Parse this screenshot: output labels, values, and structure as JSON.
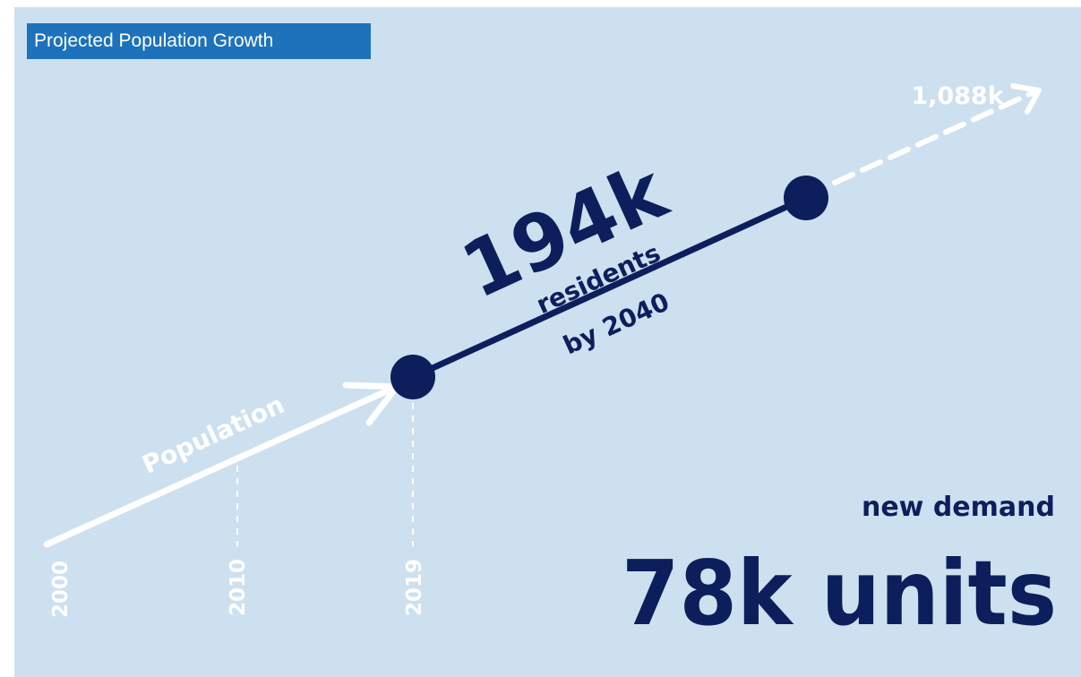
{
  "title": "Projected Population Growth",
  "segment_label": "Population",
  "years": [
    "2000",
    "2010",
    "2019"
  ],
  "projection": {
    "value": "194k",
    "unit": "residents",
    "period": "by 2040"
  },
  "endpoint_label": "1,088k",
  "demand": {
    "label": "new demand",
    "value": "78k units"
  },
  "colors": {
    "background": "#cde0f0",
    "badge": "#1d72bb",
    "navy": "#0c1f5c",
    "white": "#ffffff"
  }
}
